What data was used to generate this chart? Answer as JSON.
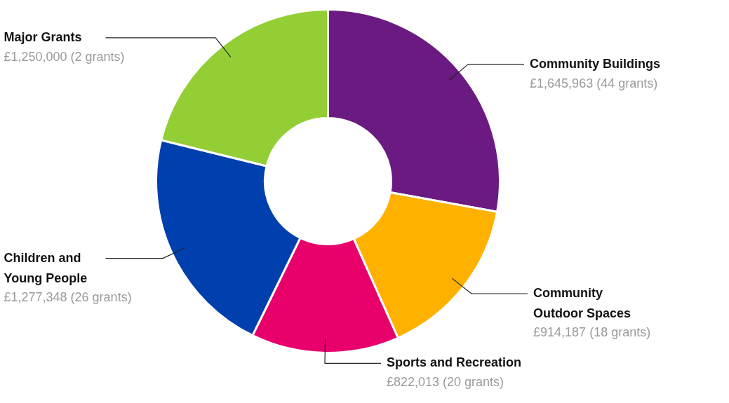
{
  "chart_data": {
    "type": "donut",
    "categories": [
      "Community Buildings",
      "Community Outdoor Spaces",
      "Sports and Recreation",
      "Children and Young People",
      "Major Grants"
    ],
    "values": [
      1645963,
      914187,
      822013,
      1277348,
      1250000
    ],
    "colors": [
      "#6b1a82",
      "#ffb100",
      "#e8006b",
      "#003fae",
      "#93ce34"
    ],
    "value_labels": [
      "£1,645,963 (44 grants)",
      "£914,187 (18 grants)",
      "£822,013 (20 grants)",
      "£1,277,348 (26 grants)",
      "£1,250,000 (2 grants)"
    ]
  }
}
